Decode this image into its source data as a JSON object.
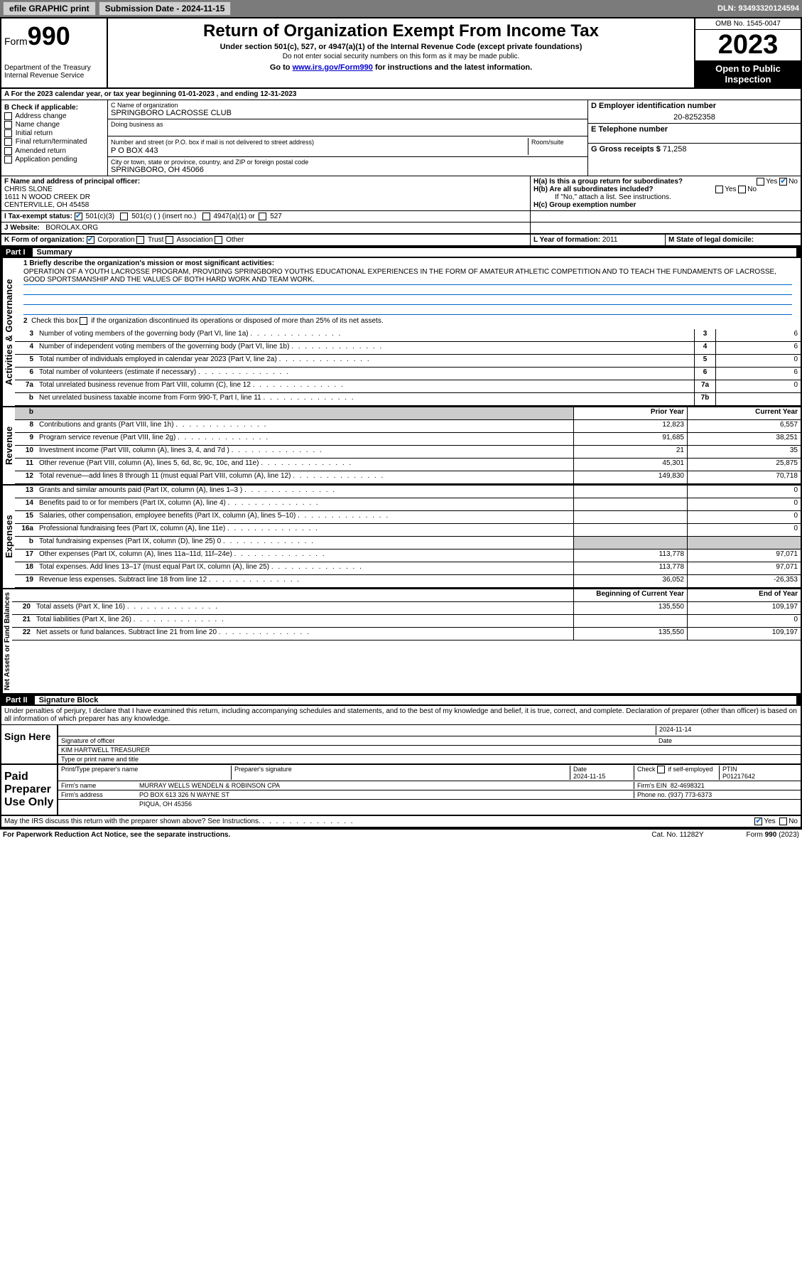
{
  "topbar": {
    "efile": "efile GRAPHIC print",
    "submission_label": "Submission Date - 2024-11-15",
    "dln": "DLN: 93493320124594"
  },
  "header": {
    "form_label": "Form",
    "form_number": "990",
    "dept": "Department of the Treasury",
    "irs": "Internal Revenue Service",
    "title": "Return of Organization Exempt From Income Tax",
    "subtitle": "Under section 501(c), 527, or 4947(a)(1) of the Internal Revenue Code (except private foundations)",
    "note1": "Do not enter social security numbers on this form as it may be made public.",
    "note2_pre": "Go to ",
    "note2_link": "www.irs.gov/Form990",
    "note2_post": " for instructions and the latest information.",
    "omb": "OMB No. 1545-0047",
    "year": "2023",
    "inspect": "Open to Public Inspection"
  },
  "tax_year": "A For the 2023 calendar year, or tax year beginning 01-01-2023   , and ending 12-31-2023",
  "section_b": {
    "label": "B Check if applicable:",
    "items": [
      "Address change",
      "Name change",
      "Initial return",
      "Final return/terminated",
      "Amended return",
      "Application pending"
    ]
  },
  "section_c": {
    "name_label": "C Name of organization",
    "name": "SPRINGBORO LACROSSE CLUB",
    "dba_label": "Doing business as",
    "addr_label": "Number and street (or P.O. box if mail is not delivered to street address)",
    "room_label": "Room/suite",
    "addr": "P O BOX 443",
    "city_label": "City or town, state or province, country, and ZIP or foreign postal code",
    "city": "SPRINGBORO, OH  45066"
  },
  "section_d": {
    "label": "D Employer identification number",
    "value": "20-8252358"
  },
  "section_e": {
    "label": "E Telephone number",
    "value": ""
  },
  "section_g": {
    "label": "G Gross receipts $",
    "value": "71,258"
  },
  "section_f": {
    "label": "F  Name and address of principal officer:",
    "name": "CHRIS SLONE",
    "addr1": "1611 N WOOD CREEK DR",
    "addr2": "CENTERVILLE, OH  45458"
  },
  "section_h": {
    "a": "H(a)  Is this a group return for subordinates?",
    "a_yes": "Yes",
    "a_no": "No",
    "b": "H(b)  Are all subordinates included?",
    "b_note": "If \"No,\" attach a list. See instructions.",
    "c": "H(c)  Group exemption number"
  },
  "section_i": {
    "label": "I  Tax-exempt status:",
    "opt1": "501(c)(3)",
    "opt2": "501(c) (  ) (insert no.)",
    "opt3": "4947(a)(1) or",
    "opt4": "527"
  },
  "section_j": {
    "label": "J  Website:",
    "value": "BOROLAX.ORG"
  },
  "section_k": {
    "label": "K Form of organization:",
    "opts": [
      "Corporation",
      "Trust",
      "Association",
      "Other"
    ]
  },
  "section_l": {
    "label": "L Year of formation:",
    "value": "2011"
  },
  "section_m": {
    "label": "M State of legal domicile:",
    "value": ""
  },
  "part1": {
    "label": "Part I",
    "title": "Summary"
  },
  "mission": {
    "label": "1  Briefly describe the organization's mission or most significant activities:",
    "text": "OPERATION OF A YOUTH LACROSSE PROGRAM, PROVIDING SPRINGBORO YOUTHS EDUCATIONAL EXPERIENCES IN THE FORM OF AMATEUR ATHLETIC COMPETITION AND TO TEACH THE FUNDAMENTS OF LACROSSE, GOOD SPORTSMANSHIP AND THE VALUES OF BOTH HARD WORK AND TEAM WORK."
  },
  "line2": "2  Check this box     if the organization discontinued its operations or disposed of more than 25% of its net assets.",
  "gov_lines": [
    {
      "n": "3",
      "d": "Number of voting members of the governing body (Part VI, line 1a)",
      "b": "3",
      "v": "6"
    },
    {
      "n": "4",
      "d": "Number of independent voting members of the governing body (Part VI, line 1b)",
      "b": "4",
      "v": "6"
    },
    {
      "n": "5",
      "d": "Total number of individuals employed in calendar year 2023 (Part V, line 2a)",
      "b": "5",
      "v": "0"
    },
    {
      "n": "6",
      "d": "Total number of volunteers (estimate if necessary)",
      "b": "6",
      "v": "6"
    },
    {
      "n": "7a",
      "d": "Total unrelated business revenue from Part VIII, column (C), line 12",
      "b": "7a",
      "v": "0"
    },
    {
      "n": "b",
      "d": "Net unrelated business taxable income from Form 990-T, Part I, line 11",
      "b": "7b",
      "v": ""
    }
  ],
  "col_hdrs": {
    "prior": "Prior Year",
    "current": "Current Year"
  },
  "rev_lines": [
    {
      "n": "8",
      "d": "Contributions and grants (Part VIII, line 1h)",
      "p": "12,823",
      "c": "6,557"
    },
    {
      "n": "9",
      "d": "Program service revenue (Part VIII, line 2g)",
      "p": "91,685",
      "c": "38,251"
    },
    {
      "n": "10",
      "d": "Investment income (Part VIII, column (A), lines 3, 4, and 7d )",
      "p": "21",
      "c": "35"
    },
    {
      "n": "11",
      "d": "Other revenue (Part VIII, column (A), lines 5, 6d, 8c, 9c, 10c, and 11e)",
      "p": "45,301",
      "c": "25,875"
    },
    {
      "n": "12",
      "d": "Total revenue—add lines 8 through 11 (must equal Part VIII, column (A), line 12)",
      "p": "149,830",
      "c": "70,718"
    }
  ],
  "exp_lines": [
    {
      "n": "13",
      "d": "Grants and similar amounts paid (Part IX, column (A), lines 1–3 )",
      "p": "",
      "c": "0"
    },
    {
      "n": "14",
      "d": "Benefits paid to or for members (Part IX, column (A), line 4)",
      "p": "",
      "c": "0"
    },
    {
      "n": "15",
      "d": "Salaries, other compensation, employee benefits (Part IX, column (A), lines 5–10)",
      "p": "",
      "c": "0"
    },
    {
      "n": "16a",
      "d": "Professional fundraising fees (Part IX, column (A), line 11e)",
      "p": "",
      "c": "0"
    },
    {
      "n": "b",
      "d": "Total fundraising expenses (Part IX, column (D), line 25) 0",
      "p": "SHADE",
      "c": "SHADE"
    },
    {
      "n": "17",
      "d": "Other expenses (Part IX, column (A), lines 11a–11d, 11f–24e)",
      "p": "113,778",
      "c": "97,071"
    },
    {
      "n": "18",
      "d": "Total expenses. Add lines 13–17 (must equal Part IX, column (A), line 25)",
      "p": "113,778",
      "c": "97,071"
    },
    {
      "n": "19",
      "d": "Revenue less expenses. Subtract line 18 from line 12",
      "p": "36,052",
      "c": "-26,353"
    }
  ],
  "net_hdrs": {
    "begin": "Beginning of Current Year",
    "end": "End of Year"
  },
  "net_lines": [
    {
      "n": "20",
      "d": "Total assets (Part X, line 16)",
      "p": "135,550",
      "c": "109,197"
    },
    {
      "n": "21",
      "d": "Total liabilities (Part X, line 26)",
      "p": "",
      "c": "0"
    },
    {
      "n": "22",
      "d": "Net assets or fund balances. Subtract line 21 from line 20",
      "p": "135,550",
      "c": "109,197"
    }
  ],
  "part2": {
    "label": "Part II",
    "title": "Signature Block"
  },
  "perjury": "Under penalties of perjury, I declare that I have examined this return, including accompanying schedules and statements, and to the best of my knowledge and belief, it is true, correct, and complete. Declaration of preparer (other than officer) is based on all information of which preparer has any knowledge.",
  "sign": {
    "here": "Sign Here",
    "sig_label": "Signature of officer",
    "date_label": "Date",
    "date": "2024-11-14",
    "name": "KIM HARTWELL TREASURER",
    "name_label": "Type or print name and title"
  },
  "prep": {
    "label": "Paid Preparer Use Only",
    "name_hdr": "Print/Type preparer's name",
    "sig_hdr": "Preparer's signature",
    "date_hdr": "Date",
    "date": "2024-11-15",
    "check_label": "Check      if self-employed",
    "ptin_hdr": "PTIN",
    "ptin": "P01217642",
    "firm_label": "Firm's name",
    "firm": "MURRAY WELLS WENDELN & ROBINSON CPA",
    "ein_label": "Firm's EIN",
    "ein": "82-4698321",
    "addr_label": "Firm's address",
    "addr1": "PO BOX 613 326 N WAYNE ST",
    "addr2": "PIQUA, OH  45356",
    "phone_label": "Phone no.",
    "phone": "(937) 773-6373"
  },
  "discuss": "May the IRS discuss this return with the preparer shown above? See Instructions.",
  "paperwork": "For Paperwork Reduction Act Notice, see the separate instructions.",
  "cat": "Cat. No. 11282Y",
  "formno": "Form 990 (2023)",
  "vert_labels": {
    "gov": "Activities & Governance",
    "rev": "Revenue",
    "exp": "Expenses",
    "net": "Net Assets or Fund Balances"
  }
}
